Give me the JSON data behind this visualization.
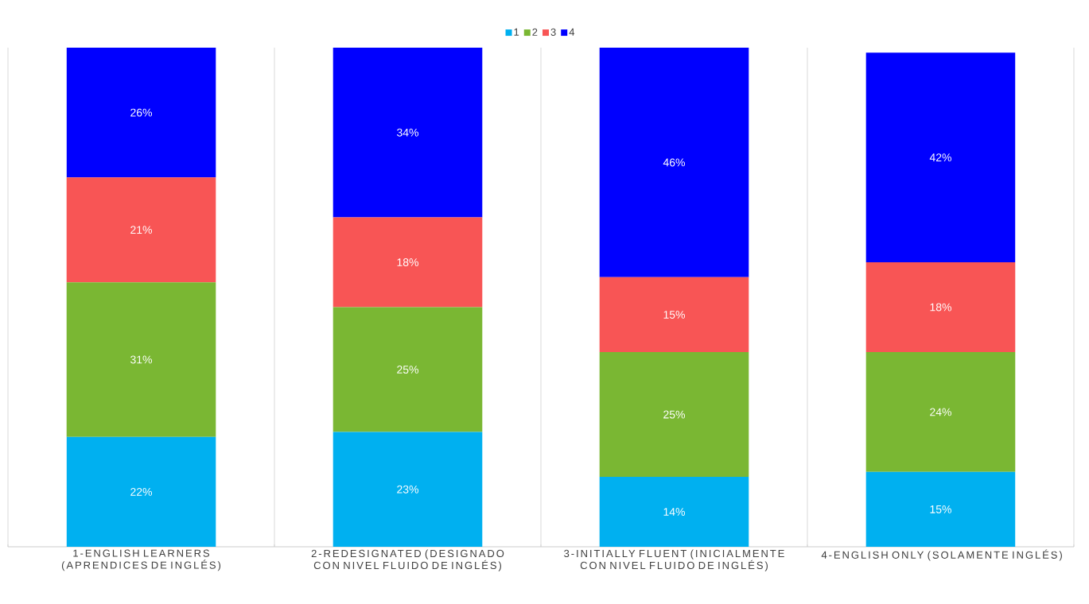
{
  "chart_data": {
    "type": "bar",
    "stacked": true,
    "legend": "top",
    "grid": "x",
    "categories": [
      "1-ENGLISH LEARNERS (APRENDICES DE INGLÉS)",
      "2-REDESIGNATED (DESIGNADO CON NIVEL FLUIDO DE INGLÉS)",
      "3-INITIALLY FLUENT (INICIALMENTE CON NIVEL FLUIDO DE INGLÉS)",
      "4-ENGLISH ONLY (SOLAMENTE INGLÉS)"
    ],
    "series": [
      {
        "name": "1",
        "color": "#00b0f0",
        "values": [
          22,
          23,
          14,
          15
        ],
        "value_labels": [
          "22%",
          "23%",
          "14%",
          "15%"
        ]
      },
      {
        "name": "2",
        "color": "#7ab733",
        "values": [
          31,
          25,
          25,
          24
        ],
        "value_labels": [
          "31%",
          "25%",
          "25%",
          "24%"
        ]
      },
      {
        "name": "3",
        "color": "#f85555",
        "values": [
          21,
          18,
          15,
          18
        ],
        "value_labels": [
          "21%",
          "18%",
          "15%",
          "18%"
        ]
      },
      {
        "name": "4",
        "color": "#0000ff",
        "values": [
          26,
          34,
          46,
          42
        ],
        "value_labels": [
          "26%",
          "34%",
          "46%",
          "42%"
        ]
      }
    ]
  }
}
